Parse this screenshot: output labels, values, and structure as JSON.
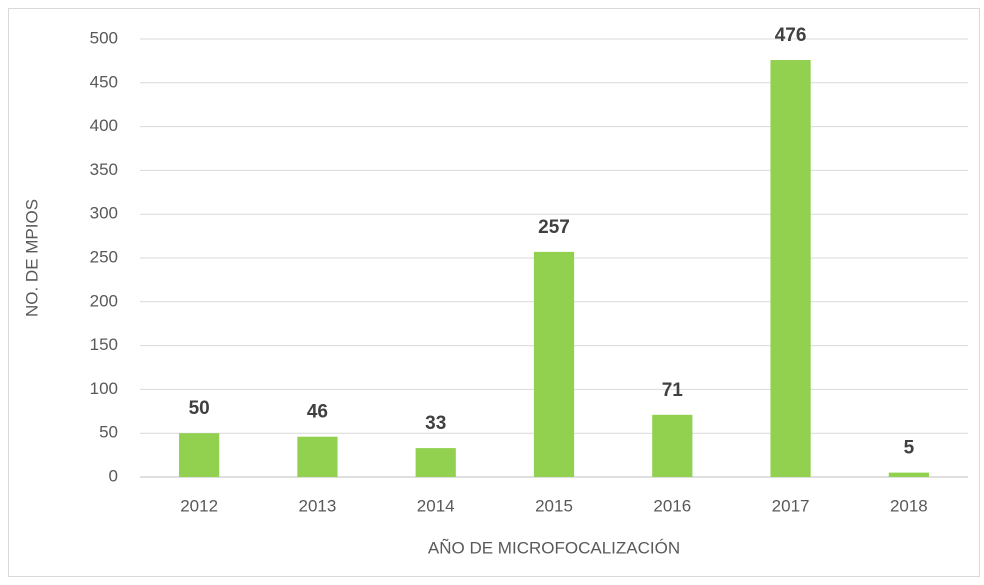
{
  "chart_data": {
    "type": "bar",
    "x_label": "AÑO DE MICROFOCALIZACIÓN",
    "y_label": "NO. DE MPIOS",
    "categories": [
      "2012",
      "2013",
      "2014",
      "2015",
      "2016",
      "2017",
      "2018"
    ],
    "values": [
      50,
      46,
      33,
      257,
      71,
      476,
      5
    ],
    "color": "#92d050",
    "ylim": [
      0,
      500
    ],
    "yticks": [
      0,
      50,
      100,
      150,
      200,
      250,
      300,
      350,
      400,
      450,
      500
    ],
    "grid": true
  }
}
